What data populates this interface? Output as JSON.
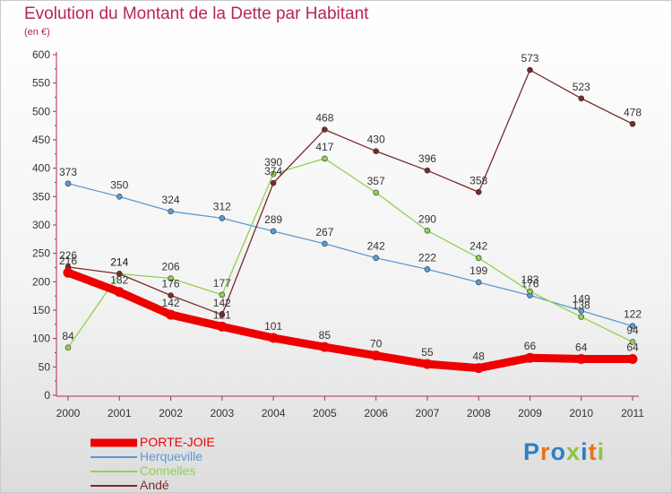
{
  "title": "Evolution du Montant de la Dette par Habitant",
  "unit_label": "(en €)",
  "logo": {
    "text": "Proxiti",
    "letter_colors": [
      "#2f7fc4",
      "#e8731e",
      "#2f7fc4",
      "#8cc63f",
      "#2f7fc4",
      "#e8731e",
      "#8cc63f"
    ]
  },
  "chart_data": {
    "type": "line",
    "title": "Evolution du Montant de la Dette par Habitant",
    "ylabel": "(en €)",
    "xlabel": "",
    "ylim": [
      0,
      600
    ],
    "ytick_step": 50,
    "x": [
      "2000",
      "2001",
      "2002",
      "2003",
      "2004",
      "2005",
      "2006",
      "2007",
      "2008",
      "2009",
      "2010",
      "2011"
    ],
    "grid": false,
    "legend_position": "bottom-left",
    "series": [
      {
        "name": "PORTE-JOIE",
        "color": "#ee0000",
        "line_width": 9,
        "values": [
          216,
          182,
          142,
          121,
          101,
          85,
          70,
          55,
          48,
          66,
          64,
          64
        ]
      },
      {
        "name": "Herqueville",
        "color": "#5b9bd5",
        "line_width": 1.3,
        "values": [
          373,
          350,
          324,
          312,
          289,
          267,
          242,
          222,
          199,
          176,
          149,
          122
        ]
      },
      {
        "name": "Connelles",
        "color": "#92d050",
        "line_width": 1.3,
        "values": [
          84,
          214,
          206,
          177,
          390,
          417,
          357,
          290,
          242,
          183,
          138,
          94
        ]
      },
      {
        "name": "Andé",
        "color": "#7b2a2a",
        "line_width": 1.3,
        "values": [
          226,
          214,
          176,
          142,
          374,
          468,
          430,
          396,
          358,
          573,
          523,
          478
        ]
      }
    ]
  }
}
